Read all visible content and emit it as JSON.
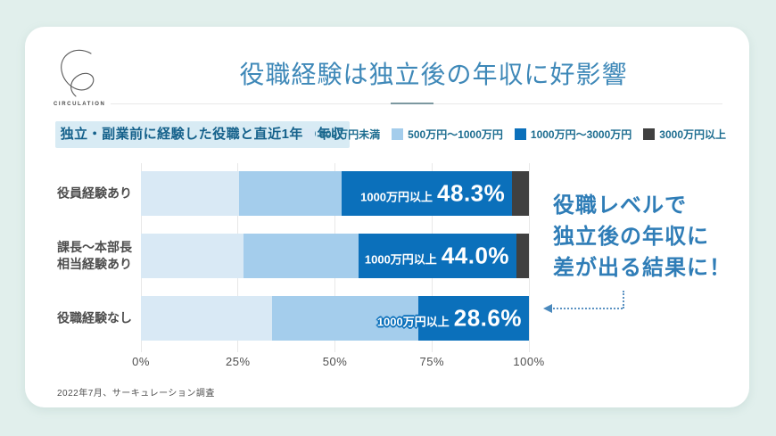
{
  "brand": {
    "name": "CIRCULATION"
  },
  "header": {
    "title": "役職経験は独立後の年収に好影響"
  },
  "badge": {
    "label": "独立・副業前に経験した役職と直近1年の年収"
  },
  "annotation": {
    "line1": "役職レベルで",
    "line2": "独立後の年収に",
    "line3": "差が出る結果に！"
  },
  "footer": {
    "source": "2022年7月、サーキュレーション調査"
  },
  "colors": {
    "page_background": "#e1efec",
    "card_background": "#ffffff",
    "title_blue": "#3e88b8",
    "badge_background": "#d8ebf4",
    "badge_text": "#15618b",
    "annotation_blue": "#2f7db7",
    "segment_under_500": "#d9e9f5",
    "segment_500_1000": "#a4cdec",
    "segment_1000_3000": "#0b70bb",
    "segment_over_3000": "#404040"
  },
  "chart_data": {
    "type": "bar",
    "orientation": "horizontal",
    "stacked": true,
    "unit": "%",
    "xlim": [
      0,
      100
    ],
    "x_ticks": [
      "0%",
      "25%",
      "50%",
      "75%",
      "100%"
    ],
    "grid": true,
    "legend_position": "top-right",
    "categories": [
      [
        "役員経験あり"
      ],
      [
        "課長〜本部長",
        "相当経験あり"
      ],
      [
        "役職経験なし"
      ]
    ],
    "series": [
      {
        "name": "500万円未満",
        "color": "#d9e9f5",
        "values": [
          25.3,
          26.4,
          33.8
        ]
      },
      {
        "name": "500万円〜1000万円",
        "color": "#a4cdec",
        "values": [
          26.4,
          29.6,
          37.6
        ]
      },
      {
        "name": "1000万円〜3000万円",
        "color": "#0b70bb",
        "values": [
          44.0,
          40.8,
          28.6
        ]
      },
      {
        "name": "3000万円以上",
        "color": "#404040",
        "values": [
          4.3,
          3.2,
          0.0
        ]
      }
    ],
    "bar_labels": [
      {
        "prefix": "1000万円以上",
        "value": "48.3%",
        "outlined": false
      },
      {
        "prefix": "1000万円以上",
        "value": "44.0%",
        "outlined": false
      },
      {
        "prefix": "1000万円以上",
        "value": "28.6%",
        "outlined": true
      }
    ]
  }
}
